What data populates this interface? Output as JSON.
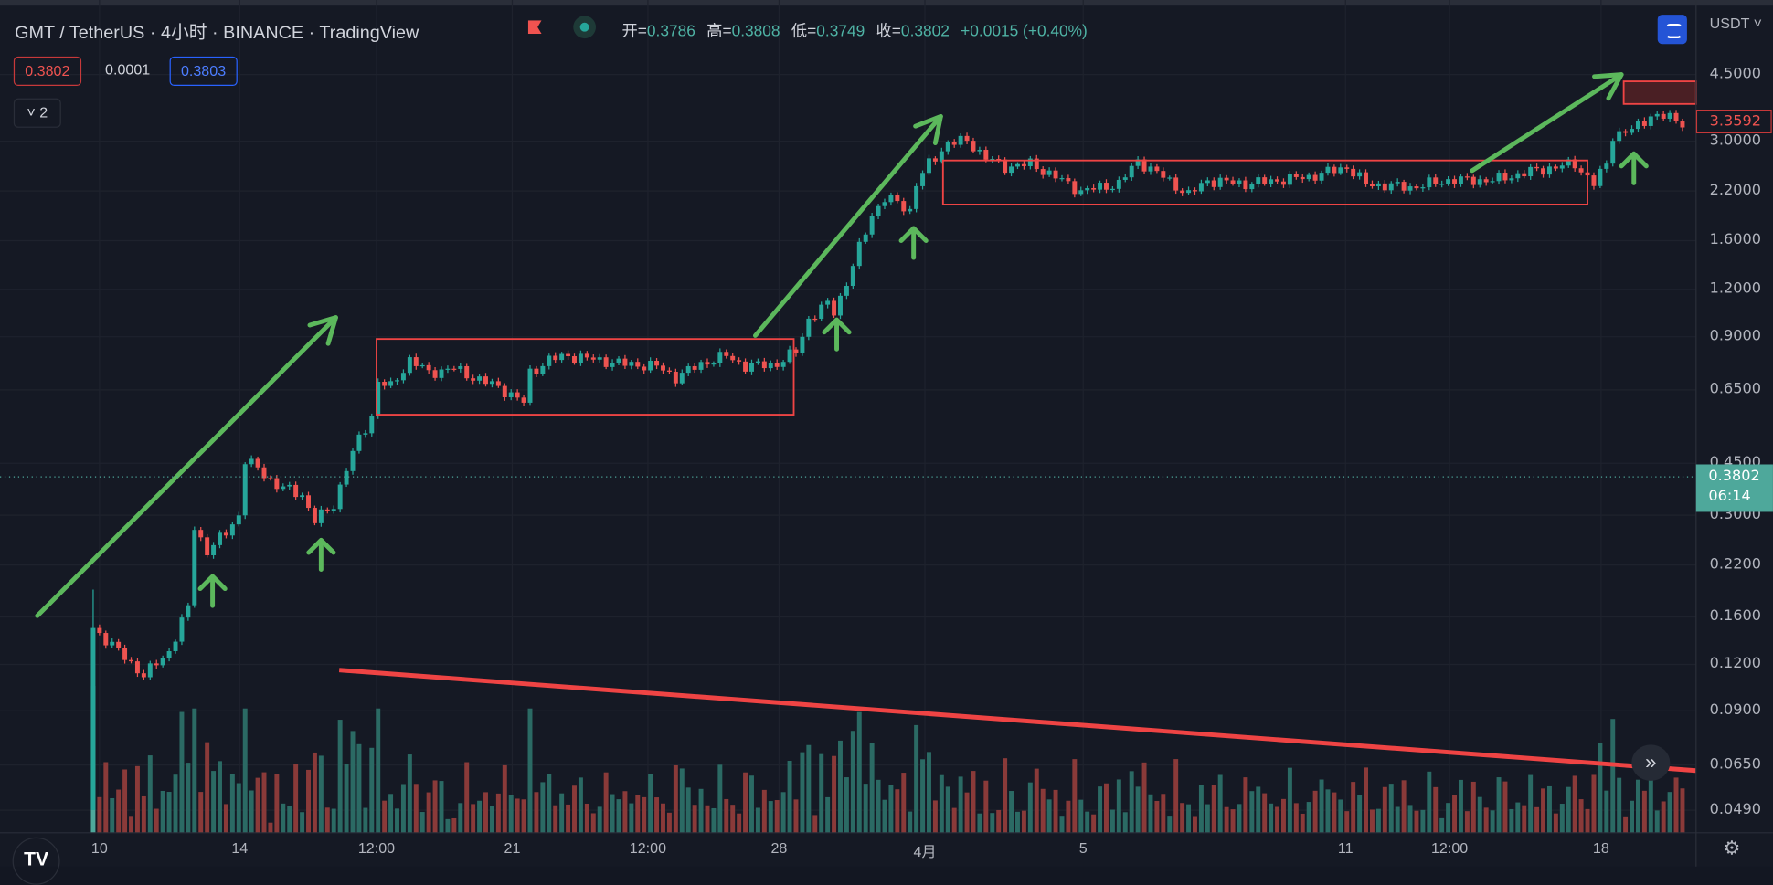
{
  "header": {
    "title": "GMT / TetherUS · 4小时 · BINANCE · TradingView",
    "ohlc": {
      "open_label": "开=",
      "open": "0.3786",
      "high_label": "高=",
      "high": "0.3808",
      "low_label": "低=",
      "low": "0.3749",
      "close_label": "收=",
      "close": "0.3802",
      "change": "+0.0015 (+0.40%)"
    },
    "bid": "0.3802",
    "spread": "0.0001",
    "ask": "0.3803",
    "indicators_collapse": "˅ 2"
  },
  "price_axis": {
    "unit": "USDT ˅",
    "labels": [
      "4.5000",
      "3.0000",
      "2.2000",
      "1.6000",
      "1.2000",
      "0.9000",
      "0.6500",
      "0.4500",
      "0.3000",
      "0.2200",
      "0.1600",
      "0.1200",
      "0.0900",
      "0.0650",
      "0.0490"
    ],
    "drawing_tag": "3.3592",
    "last_price": "0.3802",
    "countdown": "06:14"
  },
  "time_axis": {
    "labels": [
      "10",
      "14",
      "12:00",
      "21",
      "12:00",
      "28",
      "4月",
      "5",
      "11",
      "12:00",
      "18"
    ]
  },
  "colors": {
    "up": "#26a69a",
    "down": "#ef5350",
    "background": "#151924",
    "annotation_green": "#5cb85c",
    "annotation_red": "#ef4444"
  },
  "icons": {
    "logo": "tradingview-logo",
    "scroll": "double-chevron-right-icon",
    "settings": "gear-icon",
    "auto_scale": "auto-scale-icon"
  },
  "chart_data": {
    "type": "candlestick",
    "scale": "log",
    "ylim": [
      0.049,
      4.5
    ],
    "grid": true,
    "first_candle": {
      "time": "03-09 20:00",
      "open": 0.049,
      "high": 0.19,
      "low": 0.049,
      "close": 0.15
    },
    "close_path": [
      [
        "03-09 20:00",
        0.15
      ],
      [
        "03-10 08:00",
        0.135
      ],
      [
        "03-11 04:00",
        0.112
      ],
      [
        "03-11 20:00",
        0.13
      ],
      [
        "03-12 08:00",
        0.17
      ],
      [
        "03-12 12:00",
        0.28
      ],
      [
        "03-12 20:00",
        0.24
      ],
      [
        "03-13 08:00",
        0.27
      ],
      [
        "03-13 16:00",
        0.3
      ],
      [
        "03-13 20:00",
        0.42
      ],
      [
        "03-14 04:00",
        0.4
      ],
      [
        "03-14 16:00",
        0.36
      ],
      [
        "03-15 08:00",
        0.34
      ],
      [
        "03-15 16:00",
        0.29
      ],
      [
        "03-16 04:00",
        0.32
      ],
      [
        "03-16 12:00",
        0.4
      ],
      [
        "03-16 20:00",
        0.48
      ],
      [
        "03-17 04:00",
        0.55
      ],
      [
        "03-17 08:00",
        0.68
      ],
      [
        "03-17 16:00",
        0.66
      ],
      [
        "03-18 04:00",
        0.78
      ],
      [
        "03-18 16:00",
        0.72
      ],
      [
        "03-19 08:00",
        0.74
      ],
      [
        "03-19 20:00",
        0.7
      ],
      [
        "03-20 12:00",
        0.66
      ],
      [
        "03-21 04:00",
        0.6
      ],
      [
        "03-21 08:00",
        0.72
      ],
      [
        "03-21 20:00",
        0.78
      ],
      [
        "03-22 08:00",
        0.8
      ],
      [
        "03-23 20:00",
        0.76
      ],
      [
        "03-24 16:00",
        0.75
      ],
      [
        "03-25 04:00",
        0.7
      ],
      [
        "03-25 20:00",
        0.76
      ],
      [
        "03-26 12:00",
        0.8
      ],
      [
        "03-27 00:00",
        0.75
      ],
      [
        "03-27 20:00",
        0.76
      ],
      [
        "03-28 08:00",
        0.82
      ],
      [
        "03-28 16:00",
        1.0
      ],
      [
        "03-29 04:00",
        1.1
      ],
      [
        "03-29 08:00",
        1.05
      ],
      [
        "03-29 16:00",
        1.25
      ],
      [
        "03-30 00:00",
        1.55
      ],
      [
        "03-30 08:00",
        1.9
      ],
      [
        "03-30 16:00",
        2.1
      ],
      [
        "03-31 00:00",
        2.05
      ],
      [
        "03-31 08:00",
        1.95
      ],
      [
        "03-31 12:00",
        2.3
      ],
      [
        "03-31 20:00",
        2.6
      ],
      [
        "04-01 08:00",
        2.95
      ],
      [
        "04-01 20:00",
        3.0
      ],
      [
        "04-02 08:00",
        2.7
      ],
      [
        "04-02 20:00",
        2.55
      ],
      [
        "04-03 12:00",
        2.6
      ],
      [
        "04-04 00:00",
        2.45
      ],
      [
        "04-04 20:00",
        2.2
      ],
      [
        "04-05 20:00",
        2.3
      ],
      [
        "04-06 08:00",
        2.65
      ],
      [
        "04-07 00:00",
        2.4
      ],
      [
        "04-07 16:00",
        2.15
      ],
      [
        "04-08 04:00",
        2.35
      ],
      [
        "04-09 04:00",
        2.3
      ],
      [
        "04-10 00:00",
        2.35
      ],
      [
        "04-10 20:00",
        2.4
      ],
      [
        "04-11 20:00",
        2.55
      ],
      [
        "04-12 08:00",
        2.3
      ],
      [
        "04-13 12:00",
        2.25
      ],
      [
        "04-14 12:00",
        2.35
      ],
      [
        "04-15 16:00",
        2.35
      ],
      [
        "04-16 20:00",
        2.5
      ],
      [
        "04-17 20:00",
        2.6
      ],
      [
        "04-18 08:00",
        2.3
      ],
      [
        "04-18 16:00",
        2.6
      ],
      [
        "04-18 20:00",
        3.1
      ],
      [
        "04-19 08:00",
        3.2
      ],
      [
        "04-19 20:00",
        3.5
      ],
      [
        "04-20 08:00",
        3.45
      ],
      [
        "04-20 16:00",
        3.36
      ]
    ]
  }
}
